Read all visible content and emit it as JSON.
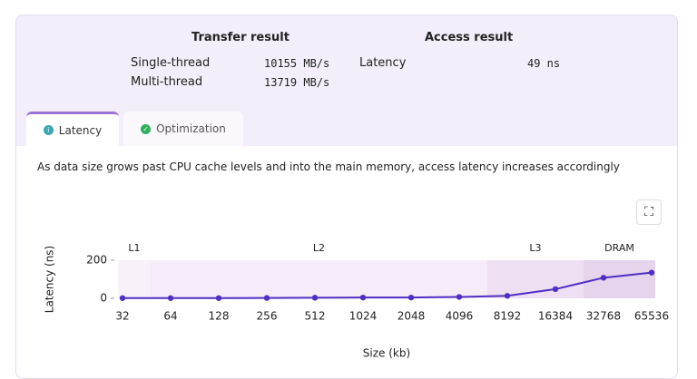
{
  "results": {
    "transfer_title": "Transfer result",
    "access_title": "Access result",
    "rows": [
      [
        "Single-thread",
        "10155 MB/s"
      ],
      [
        "Multi-thread",
        "13719 MB/s"
      ]
    ],
    "latency": [
      "Latency",
      "49 ns"
    ]
  },
  "tabs": [
    "Latency",
    "Optimization"
  ],
  "description": "As data size grows past CPU cache levels and into the main memory, access latency increases accordingly",
  "chart_data": {
    "type": "line",
    "x_label": "Size (kb)",
    "y_label": "Latency (ns)",
    "categories": [
      32,
      64,
      128,
      256,
      512,
      1024,
      2048,
      4096,
      8192,
      16384,
      32768,
      65536
    ],
    "series": [
      {
        "color": "#4f2fc4",
        "values": [
          1,
          1,
          1,
          2,
          3,
          4,
          4,
          7,
          13,
          48,
          108,
          135
        ]
      }
    ],
    "ylim": [
      0,
      200
    ],
    "yticks": [
      0,
      200
    ],
    "regions": [
      {
        "label": "L1",
        "end": 48,
        "color": "#f8f1fa"
      },
      {
        "label": "L2",
        "end": 6144,
        "color": "#f6ebf8"
      },
      {
        "label": "L3",
        "end": 24576,
        "color": "#efdff3"
      },
      {
        "label": "DRAM",
        "color": "#e6d3ec"
      }
    ]
  }
}
